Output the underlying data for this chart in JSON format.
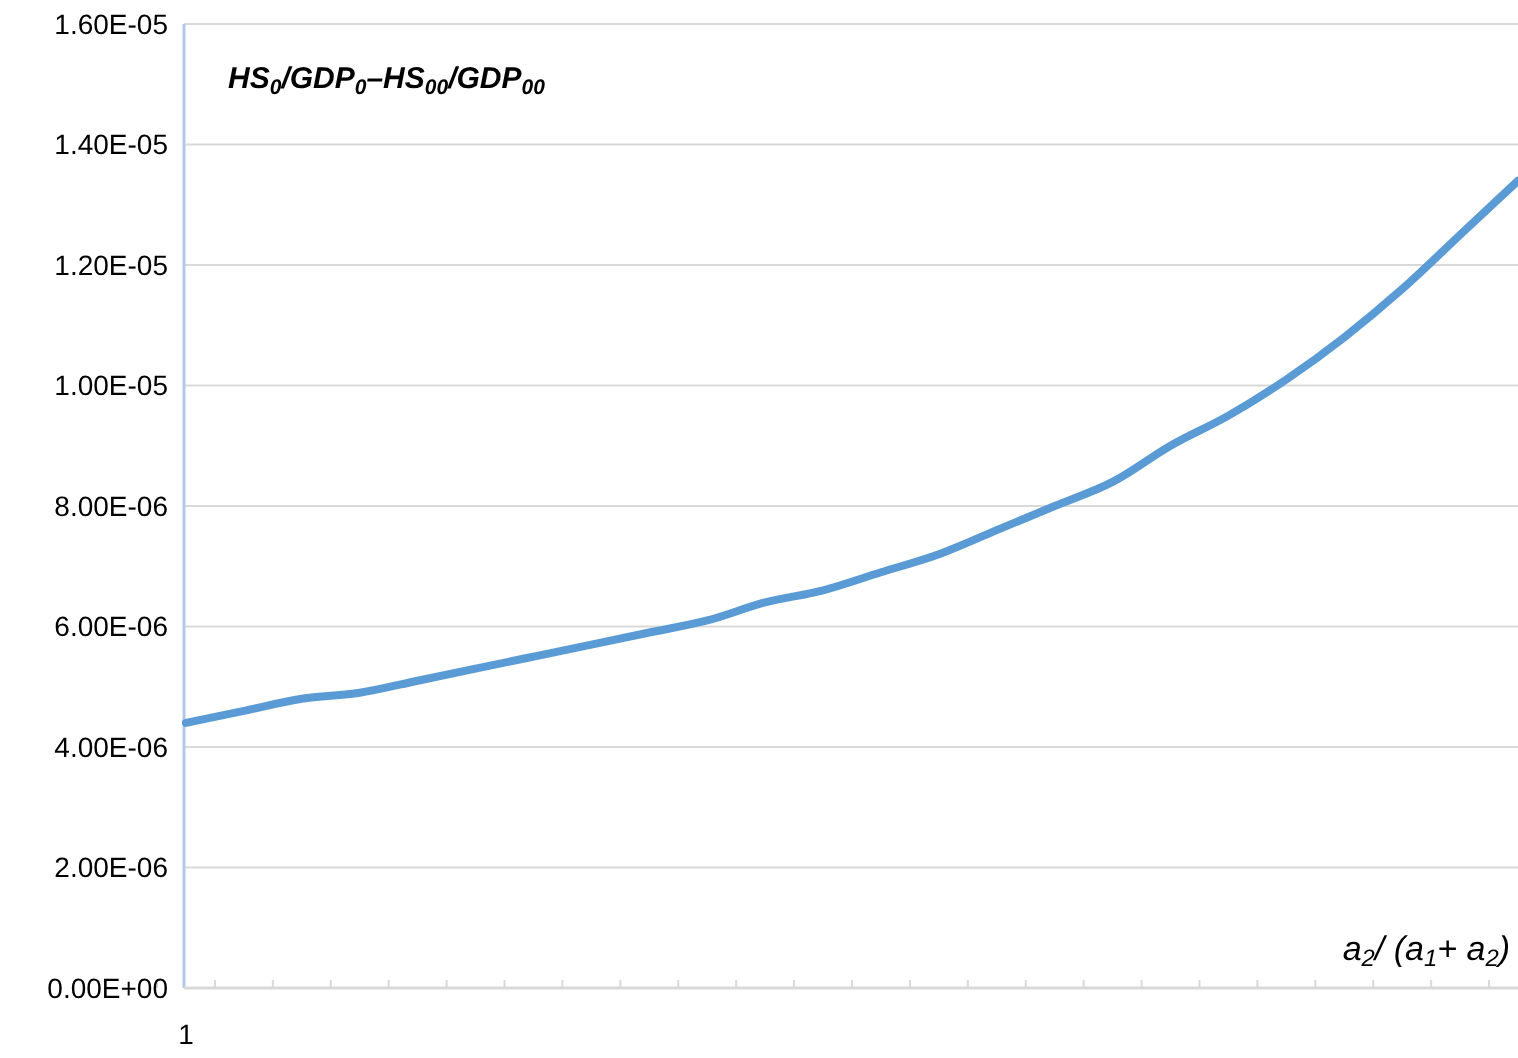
{
  "chart_data": {
    "type": "line",
    "xlabel": "a$_{2}$/ (a$_{1}$+ a$_{2}$)",
    "ylabel": "HS$_{0}$/GDP$_{0}$–HS$_{00}$/GDP$_{00}$",
    "categories": [
      "1",
      null,
      null,
      null,
      null,
      null,
      null,
      null,
      null,
      null,
      null,
      null,
      null,
      null,
      null,
      null,
      null,
      null,
      null,
      null,
      null,
      null,
      null,
      null
    ],
    "series": [
      {
        "color": "#5b9bd5",
        "values": [
          4.4e-06,
          4.6e-06,
          4.8e-06,
          4.9e-06,
          5.1e-06,
          5.3e-06,
          5.5e-06,
          5.7e-06,
          5.9e-06,
          6.1e-06,
          6.4e-06,
          6.6e-06,
          6.9e-06,
          7.2e-06,
          7.6e-06,
          8e-06,
          8.4e-06,
          9e-06,
          9.5e-06,
          1.01e-05,
          1.08e-05,
          1.16e-05,
          1.25e-05,
          1.34e-05
        ]
      }
    ],
    "ylim": [
      0,
      1.6e-05
    ],
    "yticks": [
      {
        "value": 0,
        "label": "0.00E+00"
      },
      {
        "value": 2e-06,
        "label": "2.00E-06"
      },
      {
        "value": 4e-06,
        "label": "4.00E-06"
      },
      {
        "value": 6e-06,
        "label": "6.00E-06"
      },
      {
        "value": 8e-06,
        "label": "8.00E-06"
      },
      {
        "value": 1e-05,
        "label": "1.00E-05"
      },
      {
        "value": 1.2e-05,
        "label": "1.20E-05"
      },
      {
        "value": 1.4e-05,
        "label": "1.40E-05"
      },
      {
        "value": 1.6e-05,
        "label": "1.60E-05"
      }
    ],
    "grid": "y",
    "line_style": "solid"
  }
}
